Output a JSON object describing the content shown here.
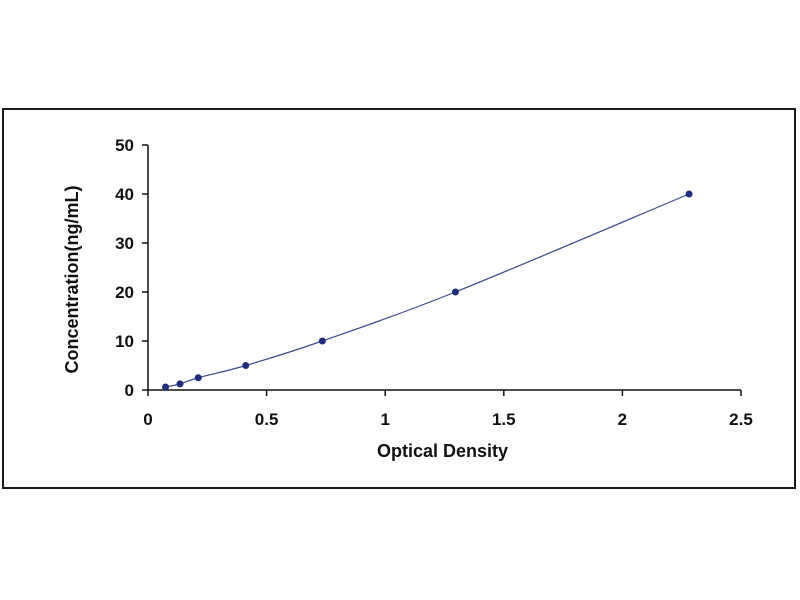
{
  "chart_data": {
    "type": "scatter",
    "title": "",
    "xlabel": "Optical Density",
    "ylabel": "Concentration(ng/mL)",
    "xlim": [
      0,
      2.5
    ],
    "ylim": [
      0,
      50
    ],
    "x_ticks": [
      "0",
      "0.5",
      "1",
      "1.5",
      "2",
      "2.5"
    ],
    "y_ticks": [
      "0",
      "10",
      "20",
      "30",
      "40",
      "50"
    ],
    "grid": false,
    "legend": "none",
    "series": [
      {
        "x": [
          0.074,
          0.135,
          0.212,
          0.412,
          0.735,
          1.296,
          2.281
        ],
        "y": [
          0.625,
          1.25,
          2.5,
          5,
          10,
          20,
          40
        ],
        "trendline": "fitted curve"
      }
    ],
    "colors": {
      "point": "#1f2d7a",
      "curve": "#3a4a8a",
      "axis": "#111111"
    }
  }
}
